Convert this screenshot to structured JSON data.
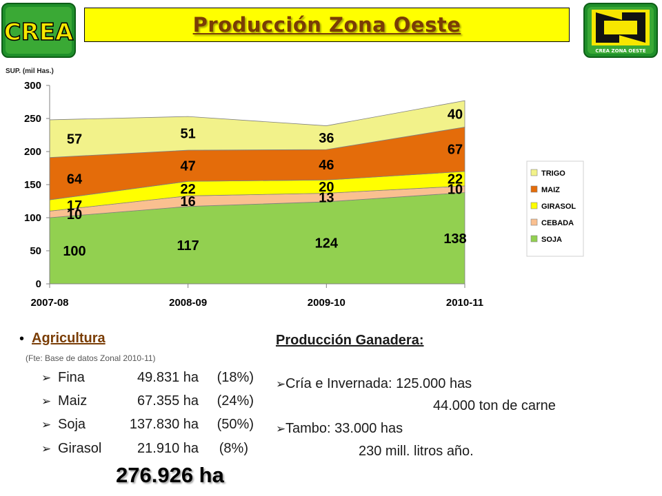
{
  "header": {
    "title": "Producción Zona Oeste",
    "logo_left_text": "CREA",
    "logo_right_text": "CREA ZONA OESTE"
  },
  "colors": {
    "soja": "#92d050",
    "cebada": "#fac090",
    "girasol": "#ffff00",
    "maiz": "#e46c0a",
    "trigo": "#f2f28a",
    "title_bg": "#ffff00",
    "title_text": "#7a3d05",
    "logo_green": "#3aa935",
    "logo_yellow": "#f7e600"
  },
  "chart_data": {
    "type": "area",
    "stacked": true,
    "unit_label": "SUP. (mil Has.)",
    "categories": [
      "2007-08",
      "2008-09",
      "2009-10",
      "2010-11"
    ],
    "ylim": [
      0,
      300
    ],
    "yticks": [
      "0",
      "50",
      "100",
      "150",
      "200",
      "250",
      "300"
    ],
    "grid": false,
    "legend_position": "right",
    "series": [
      {
        "name": "SOJA",
        "values": [
          100,
          117,
          124,
          138
        ]
      },
      {
        "name": "CEBADA",
        "values": [
          10,
          16,
          13,
          10
        ]
      },
      {
        "name": "GIRASOL",
        "values": [
          17,
          22,
          20,
          22
        ]
      },
      {
        "name": "MAIZ",
        "values": [
          64,
          47,
          46,
          67
        ]
      },
      {
        "name": "TRIGO",
        "values": [
          57,
          51,
          36,
          40
        ]
      }
    ],
    "legend_order": [
      "TRIGO",
      "MAIZ",
      "GIRASOL",
      "CEBADA",
      "SOJA"
    ]
  },
  "agricultura": {
    "title": "Agricultura",
    "source": "(Fte: Base de datos Zonal 2010-11)",
    "rows": [
      {
        "crop": "Fina",
        "ha": "49.831 ha",
        "pct": "(18%)"
      },
      {
        "crop": "Maiz",
        "ha": "67.355 ha",
        "pct": "(24%)"
      },
      {
        "crop": "Soja",
        "ha": "137.830 ha",
        "pct": "(50%)"
      },
      {
        "crop": "Girasol",
        "ha": "21.910  ha",
        "pct": "(8%)"
      }
    ],
    "total": "276.926 ha"
  },
  "ganadera": {
    "title": "Producción Ganadera:",
    "cria_label": "Cría e Invernada: 125.000 has",
    "cria_carne": "44.000 ton de carne",
    "tambo_label": "Tambo:    33.000 has",
    "tambo_litros": "230 mill. litros año."
  }
}
